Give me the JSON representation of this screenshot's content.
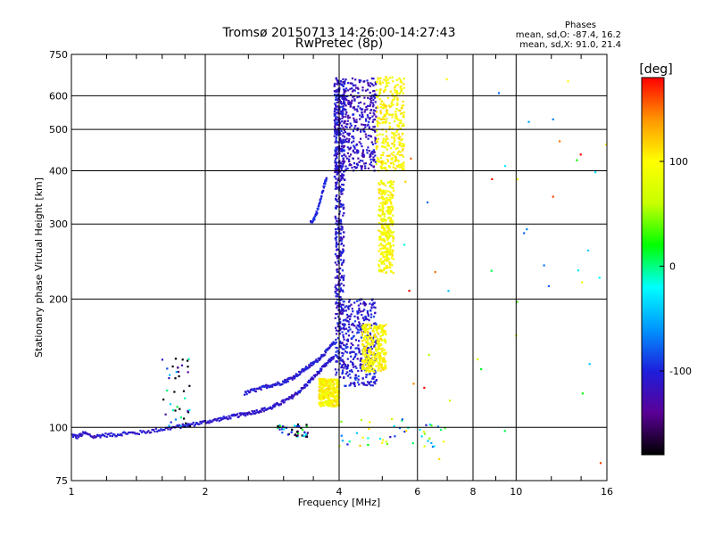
{
  "chart_data": {
    "type": "scatter",
    "title": "Tromsø 20150713 14:26:00-14:27:43",
    "subtitle": "RwPretec (8p)",
    "xlabel": "Frequency [MHz]",
    "ylabel": "Stationary phase Virtual Height [km]",
    "x_scale": "log",
    "y_scale": "log",
    "xlim": [
      1,
      16
    ],
    "ylim": [
      75,
      750
    ],
    "x_ticks": [
      1,
      2,
      4,
      6,
      8,
      10,
      16
    ],
    "x_tick_labels": [
      "1",
      "2",
      "4",
      "6",
      "8",
      "10",
      "16"
    ],
    "y_ticks": [
      75,
      100,
      200,
      300,
      400,
      500,
      600,
      750
    ],
    "y_tick_labels": [
      "75",
      "100",
      "200",
      "300",
      "400",
      "500",
      "600",
      "750"
    ],
    "grid": true,
    "phases_info": {
      "heading": "Phases",
      "line_o": "mean, sd,O: -87.4, 16.2",
      "line_x": "mean, sd,X:  91.0, 21.4"
    },
    "colorbar": {
      "label": "[deg]",
      "range": [
        -180,
        180
      ],
      "ticks": [
        100,
        0,
        -100
      ],
      "tick_labels": [
        "100",
        "0",
        "-100"
      ],
      "colors": [
        "#000000",
        "#5a0096",
        "#1e1edc",
        "#0096ff",
        "#00ffff",
        "#00ff00",
        "#c8ff00",
        "#ffff00",
        "#ff9600",
        "#ff0000"
      ]
    },
    "series": [
      {
        "type": "trace",
        "phase": -110,
        "points": [
          [
            1.0,
            96
          ],
          [
            1.03,
            95
          ],
          [
            1.07,
            97
          ],
          [
            1.12,
            95
          ],
          [
            1.18,
            96
          ],
          [
            1.25,
            96
          ],
          [
            1.32,
            97
          ],
          [
            1.4,
            97
          ],
          [
            1.5,
            98
          ],
          [
            1.6,
            99
          ],
          [
            1.7,
            100
          ],
          [
            1.8,
            101
          ],
          [
            1.9,
            102
          ],
          [
            2.0,
            103
          ],
          [
            2.1,
            104
          ],
          [
            2.2,
            105
          ],
          [
            2.3,
            106
          ],
          [
            2.4,
            107
          ],
          [
            2.5,
            108
          ],
          [
            2.6,
            109
          ],
          [
            2.7,
            110
          ],
          [
            2.8,
            111
          ],
          [
            2.9,
            113
          ],
          [
            3.0,
            115
          ],
          [
            3.1,
            117
          ],
          [
            3.2,
            120
          ],
          [
            3.3,
            123
          ],
          [
            3.4,
            127
          ],
          [
            3.5,
            131
          ],
          [
            3.6,
            135
          ],
          [
            3.7,
            139
          ],
          [
            3.8,
            143
          ],
          [
            3.9,
            147
          ]
        ]
      },
      {
        "type": "trace",
        "phase": -105,
        "points": [
          [
            2.45,
            120
          ],
          [
            2.55,
            122
          ],
          [
            2.65,
            123
          ],
          [
            2.75,
            125
          ],
          [
            2.85,
            126
          ],
          [
            2.95,
            127
          ],
          [
            3.05,
            129
          ],
          [
            3.15,
            131
          ],
          [
            3.25,
            134
          ],
          [
            3.35,
            137
          ],
          [
            3.45,
            140
          ],
          [
            3.55,
            143
          ],
          [
            3.65,
            147
          ],
          [
            3.75,
            151
          ],
          [
            3.85,
            156
          ],
          [
            3.95,
            160
          ]
        ]
      },
      {
        "type": "trace",
        "phase": -100,
        "points": [
          [
            3.45,
            302
          ],
          [
            3.52,
            310
          ],
          [
            3.58,
            325
          ],
          [
            3.64,
            345
          ],
          [
            3.7,
            370
          ],
          [
            3.75,
            385
          ]
        ]
      },
      {
        "type": "band",
        "phase": -110,
        "f": [
          3.9,
          4.12
        ],
        "h": [
          380,
          660
        ]
      },
      {
        "type": "band",
        "phase": -110,
        "f": [
          3.92,
          4.1
        ],
        "h": [
          130,
          380
        ]
      },
      {
        "type": "band",
        "phase": -115,
        "f": [
          4.1,
          4.85
        ],
        "h": [
          400,
          660
        ]
      },
      {
        "type": "band",
        "phase": -105,
        "f": [
          4.1,
          4.85
        ],
        "h": [
          125,
          200
        ]
      },
      {
        "type": "band",
        "phase": 100,
        "f": [
          4.85,
          5.6
        ],
        "h": [
          400,
          665
        ]
      },
      {
        "type": "band",
        "phase": 100,
        "f": [
          4.5,
          5.1
        ],
        "h": [
          135,
          175
        ]
      },
      {
        "type": "band",
        "phase": 95,
        "f": [
          4.9,
          5.3
        ],
        "h": [
          230,
          380
        ]
      },
      {
        "type": "band",
        "phase": 100,
        "f": [
          3.6,
          4.0
        ],
        "h": [
          112,
          130
        ]
      },
      {
        "type": "scatter",
        "phase": -120,
        "f": [
          1.6,
          1.85
        ],
        "h": [
          100,
          145
        ]
      },
      {
        "type": "scatter",
        "phase": -110,
        "f": [
          2.9,
          3.4
        ],
        "h": [
          95,
          102
        ]
      },
      {
        "type": "scatter",
        "phase": 10,
        "f": [
          4.0,
          7.0
        ],
        "h": [
          90,
          105
        ]
      },
      {
        "type": "scatter",
        "phase": 60,
        "f": [
          5.6,
          16
        ],
        "h": [
          80,
          680
        ]
      }
    ]
  }
}
